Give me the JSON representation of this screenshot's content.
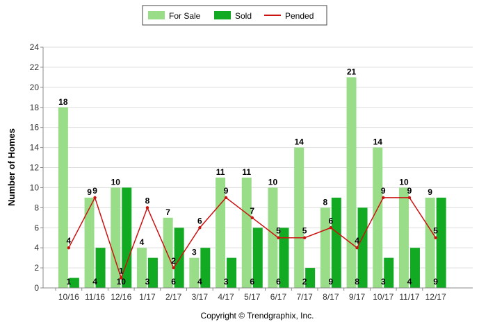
{
  "copyright": "Copyright © Trendgraphix, Inc.",
  "colors": {
    "for_sale": "#99dd88",
    "sold": "#11aa22",
    "pended": "#cc1111",
    "grid": "#dddddd"
  },
  "chart_data": {
    "type": "bar",
    "categories": [
      "10/16",
      "11/16",
      "12/16",
      "1/17",
      "2/17",
      "3/17",
      "4/17",
      "5/17",
      "6/17",
      "7/17",
      "8/17",
      "9/17",
      "10/17",
      "11/17",
      "12/17"
    ],
    "series": [
      {
        "name": "For Sale",
        "type": "bar",
        "values": [
          18,
          9,
          10,
          4,
          7,
          3,
          11,
          11,
          10,
          14,
          8,
          21,
          14,
          10,
          9
        ]
      },
      {
        "name": "Sold",
        "type": "bar",
        "values": [
          1,
          4,
          10,
          3,
          6,
          4,
          3,
          6,
          6,
          2,
          9,
          8,
          3,
          4,
          9
        ]
      },
      {
        "name": "Pended",
        "type": "line",
        "values": [
          4,
          9,
          1,
          8,
          2,
          6,
          9,
          7,
          5,
          5,
          6,
          4,
          9,
          9,
          5
        ]
      }
    ],
    "title": "",
    "xlabel": "",
    "ylabel": "Number of Homes",
    "ylim": [
      0,
      24
    ],
    "yticks": [
      0,
      2,
      4,
      6,
      8,
      10,
      12,
      14,
      16,
      18,
      20,
      22,
      24
    ],
    "grid": true,
    "legend": "top-center"
  }
}
